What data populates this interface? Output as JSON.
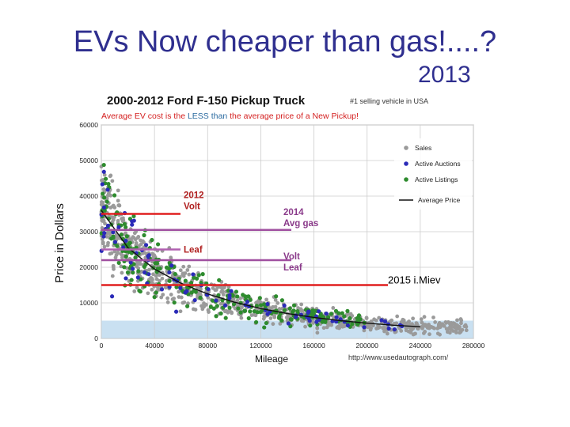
{
  "slide": {
    "title": "EVs Now cheaper than gas!....?",
    "year": "2013"
  },
  "chart_data": {
    "type": "scatter",
    "title": "2000-2012 Ford F-150 Pickup Truck",
    "subtitle_note": "#1 selling vehicle in USA",
    "subtitle": {
      "part1": "Average EV cost is the ",
      "part2": "LESS than",
      "part3": " the average price of a New  Pickup!"
    },
    "xlabel": "Mileage",
    "ylabel": "Price in Dollars",
    "source": "http://www.usedautograph.com/",
    "xlim": [
      0,
      280000
    ],
    "ylim": [
      0,
      60000
    ],
    "x_ticks": [
      "0",
      "40000",
      "80000",
      "120000",
      "160000",
      "200000",
      "240000",
      "280000"
    ],
    "y_ticks": [
      "0",
      "10000",
      "20000",
      "30000",
      "40000",
      "50000",
      "60000"
    ],
    "legend": {
      "position": "top-right",
      "items": [
        {
          "label": "Sales",
          "color": "#9a9a9a"
        },
        {
          "label": "Active Auctions",
          "color": "#2b2bb8"
        },
        {
          "label": "Active Listings",
          "color": "#2e8b2e"
        },
        {
          "label": "Average Price",
          "color": "#111111"
        }
      ]
    },
    "average_price_curve": {
      "x": [
        0,
        20000,
        40000,
        60000,
        80000,
        100000,
        120000,
        140000,
        160000,
        180000,
        200000,
        220000,
        240000
      ],
      "y": [
        36000,
        25500,
        19500,
        15500,
        12500,
        10200,
        8400,
        7000,
        5900,
        5000,
        4300,
        3700,
        3300
      ]
    },
    "reference_lines": [
      {
        "label": "2012 Volt",
        "label_lines": [
          "2012",
          "Volt"
        ],
        "y": 35000,
        "color": "#e02020"
      },
      {
        "label": "2014 Avg gas",
        "label_lines": [
          "2014",
          "Avg gas"
        ],
        "y": 30500,
        "color": "#a050a0"
      },
      {
        "label": "Leaf",
        "label_lines": [
          "Leaf"
        ],
        "y": 25000,
        "color": "#b060b0"
      },
      {
        "label": "Volt Leaf",
        "label_lines": [
          "Volt",
          "Leaf"
        ],
        "y": 22000,
        "color": "#a050a0"
      },
      {
        "label": "2015 i.Miev",
        "label_lines": [
          "2015 i.Miev"
        ],
        "y": 15000,
        "color": "#e02020"
      }
    ],
    "colors": {
      "sales": "#9a9a9a",
      "auctions": "#2b2bb8",
      "listings": "#2e8b2e",
      "title": "#111111",
      "subtitle_red": "#d42020",
      "subtitle_blue": "#2a6aa0",
      "band": "#bcd8ee"
    }
  }
}
